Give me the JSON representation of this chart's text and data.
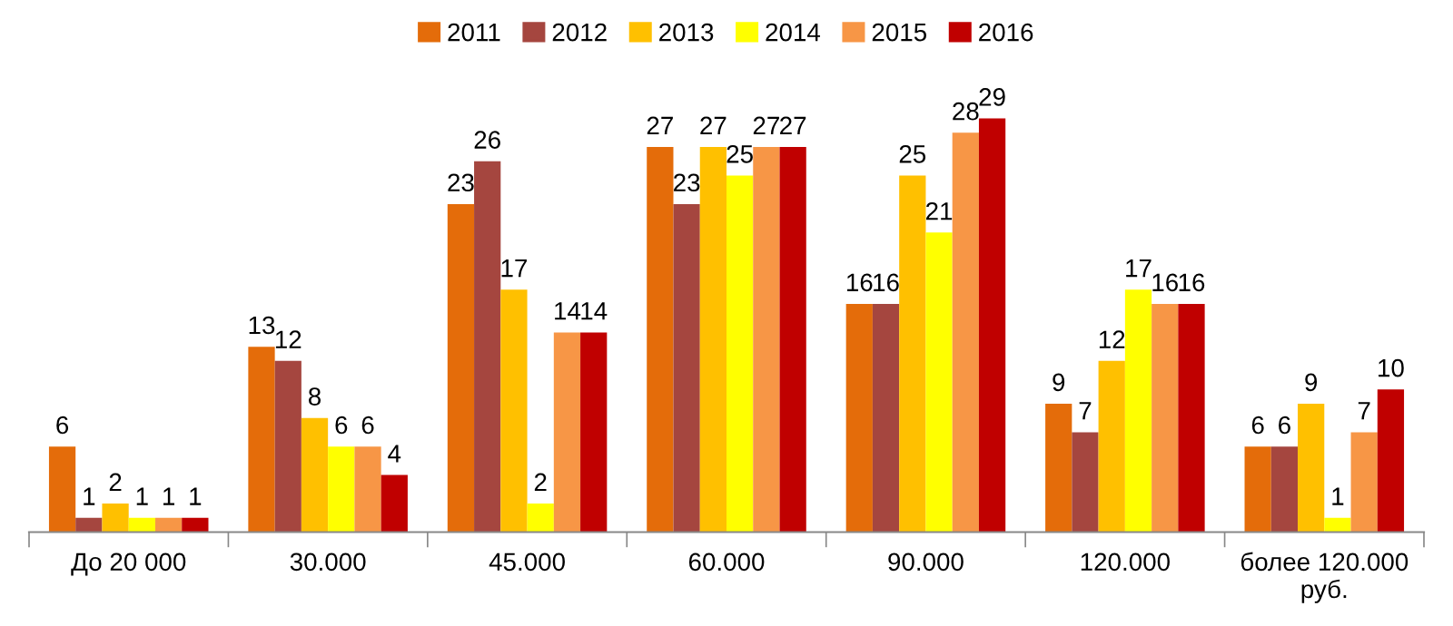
{
  "chart_data": {
    "type": "bar",
    "categories": [
      "До 20 000",
      "30.000",
      "45.000",
      "60.000",
      "90.000",
      "120.000",
      "более 120.000\nруб."
    ],
    "series": [
      {
        "name": "2011",
        "color": "#e46c0a",
        "values": [
          6,
          13,
          23,
          27,
          16,
          9,
          6
        ]
      },
      {
        "name": "2012",
        "color": "#a5463f",
        "values": [
          1,
          12,
          26,
          23,
          16,
          7,
          6
        ]
      },
      {
        "name": "2013",
        "color": "#ffc000",
        "values": [
          2,
          8,
          17,
          27,
          25,
          12,
          9
        ]
      },
      {
        "name": "2014",
        "color": "#ffff00",
        "values": [
          1,
          6,
          2,
          25,
          21,
          17,
          1
        ]
      },
      {
        "name": "2015",
        "color": "#f79646",
        "values": [
          1,
          6,
          14,
          27,
          28,
          16,
          7
        ]
      },
      {
        "name": "2016",
        "color": "#c00000",
        "values": [
          1,
          4,
          14,
          27,
          29,
          16,
          10
        ]
      }
    ],
    "data_labels": true,
    "legend": "top",
    "grid": false
  }
}
